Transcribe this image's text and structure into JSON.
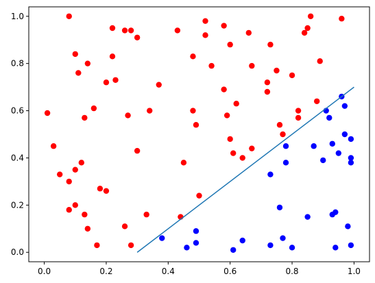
{
  "chart_data": {
    "type": "scatter",
    "title": "",
    "xlabel": "",
    "ylabel": "",
    "xlim": [
      -0.05,
      1.05
    ],
    "ylim": [
      -0.04,
      1.04
    ],
    "grid": false,
    "x_ticks": [
      0.0,
      0.2,
      0.4,
      0.6,
      0.8,
      1.0
    ],
    "x_tick_labels": [
      "0.0",
      "0.2",
      "0.4",
      "0.6",
      "0.8",
      "1.0"
    ],
    "y_ticks": [
      0.0,
      0.2,
      0.4,
      0.6,
      0.8,
      1.0
    ],
    "y_tick_labels": [
      "0.0",
      "0.2",
      "0.4",
      "0.6",
      "0.8",
      "1.0"
    ],
    "series": [
      {
        "color": "#ff0000",
        "type": "scatter",
        "points": [
          [
            0.01,
            0.59
          ],
          [
            0.03,
            0.45
          ],
          [
            0.05,
            0.33
          ],
          [
            0.08,
            1.0
          ],
          [
            0.08,
            0.3
          ],
          [
            0.08,
            0.18
          ],
          [
            0.1,
            0.84
          ],
          [
            0.1,
            0.35
          ],
          [
            0.1,
            0.2
          ],
          [
            0.11,
            0.76
          ],
          [
            0.12,
            0.38
          ],
          [
            0.13,
            0.57
          ],
          [
            0.13,
            0.16
          ],
          [
            0.14,
            0.8
          ],
          [
            0.14,
            0.1
          ],
          [
            0.16,
            0.61
          ],
          [
            0.17,
            0.03
          ],
          [
            0.18,
            0.27
          ],
          [
            0.2,
            0.72
          ],
          [
            0.2,
            0.26
          ],
          [
            0.22,
            0.95
          ],
          [
            0.22,
            0.83
          ],
          [
            0.23,
            0.73
          ],
          [
            0.26,
            0.94
          ],
          [
            0.26,
            0.11
          ],
          [
            0.27,
            0.58
          ],
          [
            0.28,
            0.94
          ],
          [
            0.28,
            0.03
          ],
          [
            0.3,
            0.91
          ],
          [
            0.3,
            0.43
          ],
          [
            0.33,
            0.16
          ],
          [
            0.34,
            0.6
          ],
          [
            0.37,
            0.71
          ],
          [
            0.43,
            0.94
          ],
          [
            0.44,
            0.15
          ],
          [
            0.45,
            0.38
          ],
          [
            0.48,
            0.83
          ],
          [
            0.48,
            0.6
          ],
          [
            0.49,
            0.54
          ],
          [
            0.5,
            0.24
          ],
          [
            0.52,
            0.92
          ],
          [
            0.52,
            0.98
          ],
          [
            0.54,
            0.79
          ],
          [
            0.58,
            0.96
          ],
          [
            0.58,
            0.69
          ],
          [
            0.59,
            0.58
          ],
          [
            0.6,
            0.88
          ],
          [
            0.6,
            0.48
          ],
          [
            0.61,
            0.42
          ],
          [
            0.62,
            0.63
          ],
          [
            0.64,
            0.4
          ],
          [
            0.66,
            0.93
          ],
          [
            0.67,
            0.79
          ],
          [
            0.67,
            0.44
          ],
          [
            0.72,
            0.72
          ],
          [
            0.72,
            0.68
          ],
          [
            0.73,
            0.88
          ],
          [
            0.75,
            0.77
          ],
          [
            0.76,
            0.54
          ],
          [
            0.77,
            0.5
          ],
          [
            0.8,
            0.75
          ],
          [
            0.82,
            0.6
          ],
          [
            0.82,
            0.57
          ],
          [
            0.84,
            0.93
          ],
          [
            0.85,
            0.95
          ],
          [
            0.86,
            1.0
          ],
          [
            0.88,
            0.64
          ],
          [
            0.89,
            0.81
          ],
          [
            0.96,
            0.99
          ]
        ]
      },
      {
        "color": "#0000ff",
        "type": "scatter",
        "points": [
          [
            0.38,
            0.06
          ],
          [
            0.46,
            0.02
          ],
          [
            0.49,
            0.04
          ],
          [
            0.49,
            0.09
          ],
          [
            0.61,
            0.01
          ],
          [
            0.64,
            0.05
          ],
          [
            0.73,
            0.33
          ],
          [
            0.73,
            0.03
          ],
          [
            0.76,
            0.19
          ],
          [
            0.77,
            0.06
          ],
          [
            0.78,
            0.45
          ],
          [
            0.78,
            0.38
          ],
          [
            0.8,
            0.02
          ],
          [
            0.85,
            0.15
          ],
          [
            0.87,
            0.45
          ],
          [
            0.9,
            0.39
          ],
          [
            0.91,
            0.6
          ],
          [
            0.92,
            0.57
          ],
          [
            0.93,
            0.46
          ],
          [
            0.93,
            0.16
          ],
          [
            0.94,
            0.17
          ],
          [
            0.94,
            0.02
          ],
          [
            0.95,
            0.42
          ],
          [
            0.96,
            0.66
          ],
          [
            0.97,
            0.62
          ],
          [
            0.97,
            0.5
          ],
          [
            0.98,
            0.11
          ],
          [
            0.99,
            0.48
          ],
          [
            0.99,
            0.4
          ],
          [
            0.99,
            0.38
          ],
          [
            0.99,
            0.03
          ]
        ]
      },
      {
        "color": "#1f77b4",
        "type": "line",
        "points": [
          [
            0.3,
            0.0
          ],
          [
            1.0,
            0.7
          ]
        ]
      }
    ]
  }
}
